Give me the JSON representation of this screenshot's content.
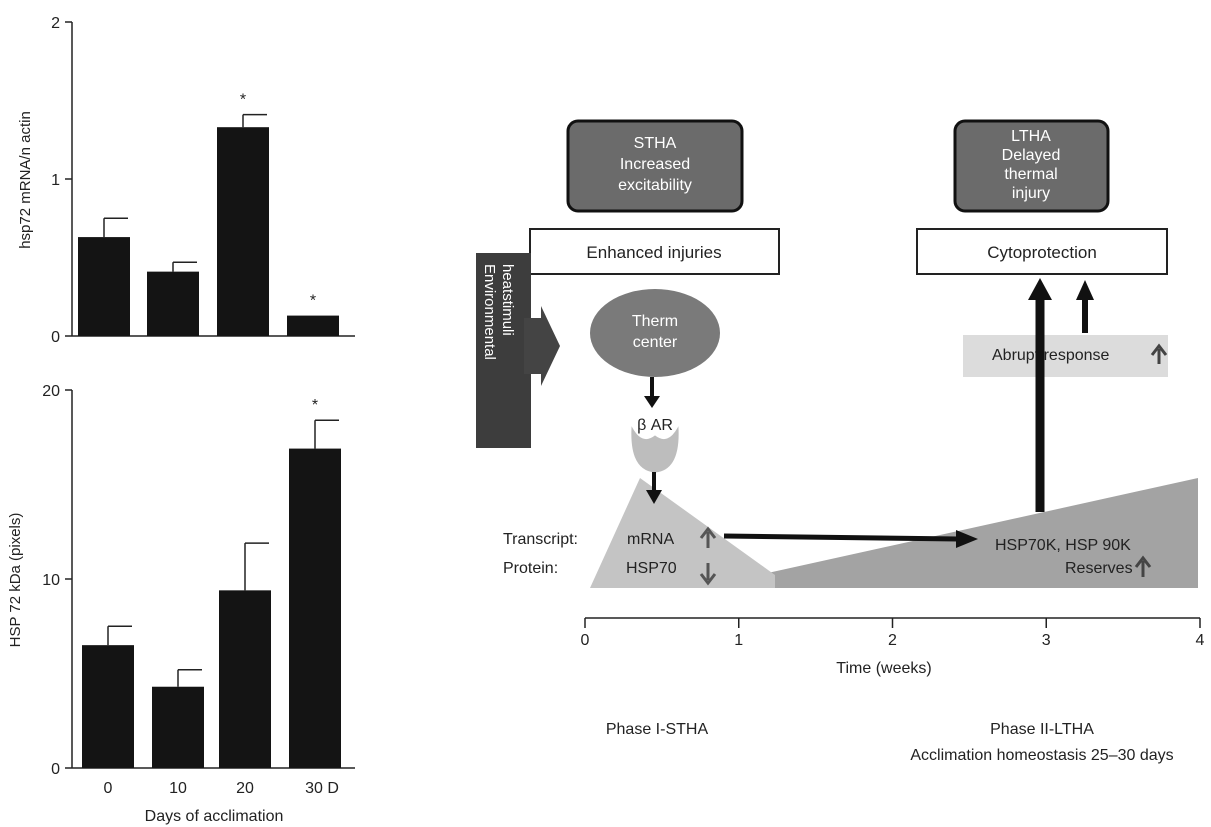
{
  "chart_data": [
    {
      "type": "bar",
      "ylabel": "hsp72 mRNA/n actin",
      "ylim": [
        0,
        2
      ],
      "yticks": [
        "0",
        "1",
        "2"
      ],
      "categories": [
        "0",
        "10",
        "20",
        "30"
      ],
      "values": [
        0.63,
        0.41,
        1.33,
        0.13
      ],
      "errors": [
        0.12,
        0.06,
        0.08,
        0.0
      ],
      "significance": [
        "",
        "",
        "*",
        "*"
      ]
    },
    {
      "type": "bar",
      "ylabel": "HSP 72 kDa (pixels)",
      "xlabel": "Days of acclimation",
      "ylim": [
        0,
        20
      ],
      "yticks": [
        "0",
        "10",
        "20"
      ],
      "categories": [
        "0",
        "10",
        "20",
        "30 D"
      ],
      "values": [
        6.5,
        4.3,
        9.4,
        16.9
      ],
      "errors": [
        1.0,
        0.9,
        2.5,
        1.5
      ],
      "significance": [
        "",
        "",
        "",
        "*"
      ]
    }
  ],
  "diagram": {
    "stha_box": [
      "STHA",
      "Increased",
      "excitability"
    ],
    "ltha_box": [
      "LTHA",
      "Delayed",
      "thermal",
      "injury"
    ],
    "enhanced_injuries": "Enhanced injuries",
    "cytoprotection": "Cytoprotection",
    "environmental_label": [
      "Environmental",
      "heatstimuli"
    ],
    "therm_center": [
      "Therm",
      "center"
    ],
    "beta_ar": "β AR",
    "abrupt_response": "Abrupt response",
    "transcript_label": "Transcript:",
    "protein_label": "Protein:",
    "mrna": "mRNA",
    "hsp70": "HSP70",
    "hsp70k": "HSP70K, HSP 90K",
    "reserves": "Reserves",
    "time_axis": {
      "ticks": [
        "0",
        "1",
        "2",
        "3",
        "4"
      ],
      "label": "Time (weeks)"
    },
    "phase1": "Phase I-STHA",
    "phase2": [
      "Phase II-LTHA",
      "Acclimation homeostasis 25–30 days"
    ],
    "colors": {
      "dark_box": "#6b6b6b",
      "dark_band": "#3d3d3d",
      "oval": "#7a7a7a",
      "light_triangle": "#c4c4c4",
      "dark_triangle": "#a3a3a3",
      "abrupt_bg": "#dcdcdc"
    }
  }
}
